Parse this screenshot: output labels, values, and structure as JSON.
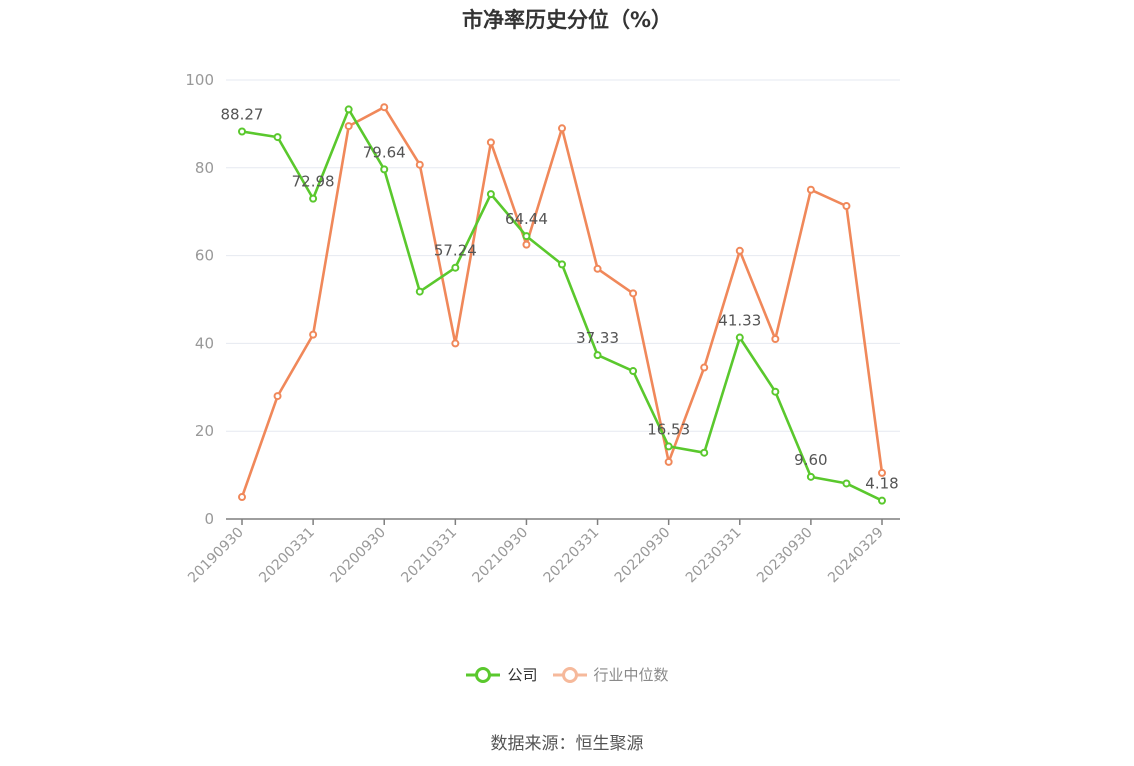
{
  "colors": {
    "company": "#5ac82d",
    "industry": "#f0885a",
    "grid": "#e6e9f0",
    "axis": "#7f7f7f",
    "tick_text": "#999999",
    "label_text": "#555555"
  },
  "legend": {
    "company": "公司",
    "industry": "行业中位数"
  },
  "source": "数据来源：恒生聚源",
  "chart_data": {
    "type": "line",
    "title": "市净率历史分位（%）",
    "xlabel": "",
    "ylabel": "",
    "ylim": [
      0,
      100
    ],
    "yticks": [
      "0",
      "20",
      "40",
      "60",
      "80",
      "100"
    ],
    "xtick_labels": [
      "20190930",
      "20200331",
      "20200930",
      "20210331",
      "20210930",
      "20220331",
      "20220930",
      "20230331",
      "20230930",
      "20240329"
    ],
    "x": [
      "20190930",
      "20191231",
      "20200331",
      "20200630",
      "20200930",
      "20201231",
      "20210331",
      "20210630",
      "20210930",
      "20211231",
      "20220331",
      "20220630",
      "20220930",
      "20221230",
      "20230331",
      "20230630",
      "20230930",
      "20231229",
      "20240329"
    ],
    "grid": true,
    "legend_position": "bottom",
    "series": [
      {
        "name": "公司",
        "color_key": "company",
        "values": [
          88.27,
          87.0,
          72.98,
          93.3,
          79.64,
          51.8,
          57.24,
          74.0,
          64.44,
          58.0,
          37.33,
          33.7,
          16.53,
          15.1,
          41.33,
          29.0,
          9.6,
          8.1,
          4.18
        ],
        "labels": [
          "88.27",
          "",
          "72.98",
          "",
          "79.64",
          "",
          "57.24",
          "",
          "64.44",
          "",
          "37.33",
          "",
          "16.53",
          "",
          "41.33",
          "",
          "9.60",
          "",
          "4.18"
        ]
      },
      {
        "name": "行业中位数",
        "color_key": "industry",
        "values": [
          5.0,
          28.0,
          42.0,
          89.5,
          93.8,
          80.7,
          40.0,
          85.8,
          62.5,
          89.0,
          57.0,
          51.4,
          13.0,
          34.5,
          61.1,
          41.0,
          75.0,
          71.3,
          10.5
        ]
      }
    ]
  }
}
